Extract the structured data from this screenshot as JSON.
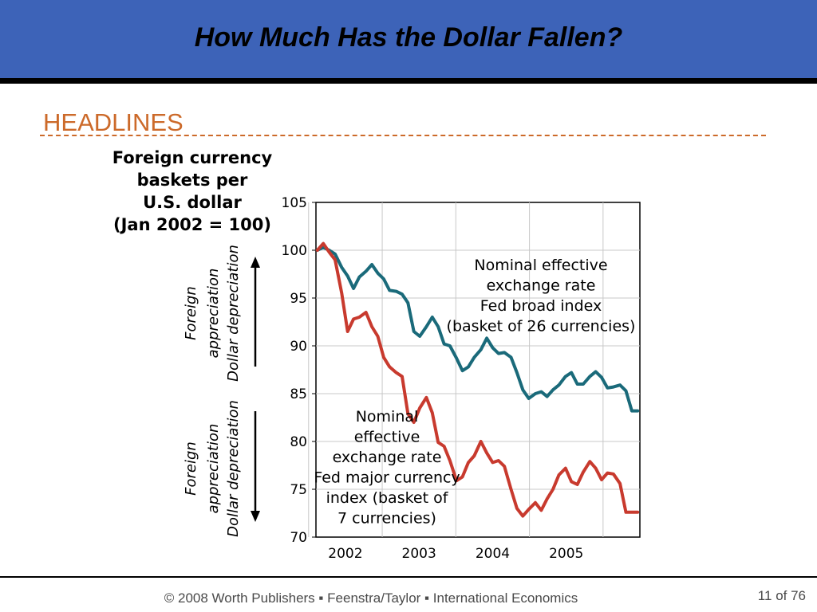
{
  "slide": {
    "title": "How Much Has the Dollar Fallen?",
    "section_label": "HEADLINES",
    "footer": "© 2008 Worth Publishers ▪ Feenstra/Taylor ▪ International Economics",
    "page_number": "11",
    "page_of": "of 76"
  },
  "colors": {
    "title_bar": "#3d63b8",
    "headline": "#cc6a2a",
    "broad_index": "#1a6a7a",
    "major_index": "#c83a2e"
  },
  "chart_data": {
    "type": "line",
    "ylabel_lines": [
      "Foreign currency",
      "baskets per",
      "U.S. dollar",
      "(Jan 2002 = 100)"
    ],
    "side_labels": {
      "upper": [
        "Foreign",
        "appreciation",
        "Dollar depreciation"
      ],
      "lower": [
        "Foreign",
        "appreciation",
        "Dollar depreciation"
      ]
    },
    "ylim": [
      70,
      105
    ],
    "yticks": [
      70,
      75,
      80,
      85,
      90,
      95,
      100,
      105
    ],
    "xlim": [
      2001.6,
      2006.0
    ],
    "xticks": [
      {
        "label": "2002",
        "value": 2002.0
      },
      {
        "label": "2003",
        "value": 2003.0
      },
      {
        "label": "2004",
        "value": 2004.0
      },
      {
        "label": "2005",
        "value": 2005.0
      }
    ],
    "grid": true,
    "series": [
      {
        "name_lines": [
          "Nominal effective",
          "exchange rate",
          "Fed broad index",
          "(basket of 26 currencies)"
        ],
        "color_key": "broad_index",
        "x": [
          2001.62,
          2001.7,
          2001.78,
          2001.86,
          2001.95,
          2002.03,
          2002.11,
          2002.19,
          2002.28,
          2002.36,
          2002.44,
          2002.52,
          2002.6,
          2002.69,
          2002.77,
          2002.85,
          2002.93,
          2003.01,
          2003.1,
          2003.18,
          2003.26,
          2003.34,
          2003.42,
          2003.51,
          2003.59,
          2003.67,
          2003.75,
          2003.84,
          2003.92,
          2004.0,
          2004.08,
          2004.16,
          2004.25,
          2004.33,
          2004.41,
          2004.49,
          2004.58,
          2004.66,
          2004.74,
          2004.82,
          2004.9,
          2004.99,
          2005.07,
          2005.15,
          2005.23,
          2005.32,
          2005.4,
          2005.48,
          2005.56,
          2005.64,
          2005.73,
          2005.81,
          2005.89,
          2005.97
        ],
        "values": [
          100.0,
          100.3,
          100.0,
          99.6,
          98.2,
          97.3,
          96.0,
          97.2,
          97.8,
          98.5,
          97.6,
          97.0,
          95.8,
          95.7,
          95.4,
          94.5,
          91.5,
          91.0,
          92.0,
          93.0,
          92.0,
          90.2,
          90.0,
          88.7,
          87.4,
          87.8,
          88.8,
          89.6,
          90.8,
          89.8,
          89.2,
          89.3,
          88.8,
          87.2,
          85.4,
          84.5,
          85.0,
          85.2,
          84.7,
          85.4,
          85.9,
          86.8,
          87.2,
          86.0,
          86.0,
          86.8,
          87.3,
          86.7,
          85.6,
          85.7,
          85.9,
          85.3,
          83.2,
          83.2
        ]
      },
      {
        "name_lines": [
          "Nominal",
          "effective",
          "exchange rate",
          "Fed major currency",
          "index (basket of",
          "7 currencies)"
        ],
        "color_key": "major_index",
        "x": [
          2001.62,
          2001.7,
          2001.78,
          2001.86,
          2001.95,
          2002.03,
          2002.11,
          2002.19,
          2002.28,
          2002.36,
          2002.44,
          2002.52,
          2002.6,
          2002.69,
          2002.77,
          2002.85,
          2002.93,
          2003.01,
          2003.1,
          2003.18,
          2003.26,
          2003.34,
          2003.42,
          2003.51,
          2003.59,
          2003.67,
          2003.75,
          2003.84,
          2003.92,
          2004.0,
          2004.08,
          2004.16,
          2004.25,
          2004.33,
          2004.41,
          2004.49,
          2004.58,
          2004.66,
          2004.74,
          2004.82,
          2004.9,
          2004.99,
          2005.07,
          2005.15,
          2005.23,
          2005.32,
          2005.4,
          2005.48,
          2005.56,
          2005.64,
          2005.73,
          2005.81,
          2005.89,
          2005.97
        ],
        "values": [
          100.0,
          100.7,
          99.8,
          99.0,
          95.5,
          91.5,
          92.8,
          93.0,
          93.5,
          92.0,
          91.0,
          88.8,
          87.8,
          87.2,
          86.8,
          82.9,
          82.0,
          83.5,
          84.6,
          83.0,
          79.9,
          79.5,
          78.0,
          75.9,
          76.3,
          77.8,
          78.5,
          80.0,
          78.8,
          77.8,
          78.0,
          77.4,
          75.0,
          73.0,
          72.2,
          72.9,
          73.6,
          72.8,
          74.0,
          75.0,
          76.5,
          77.2,
          75.8,
          75.5,
          76.8,
          77.9,
          77.2,
          76.0,
          76.7,
          76.6,
          75.6,
          72.6,
          72.6,
          72.6
        ]
      }
    ]
  }
}
